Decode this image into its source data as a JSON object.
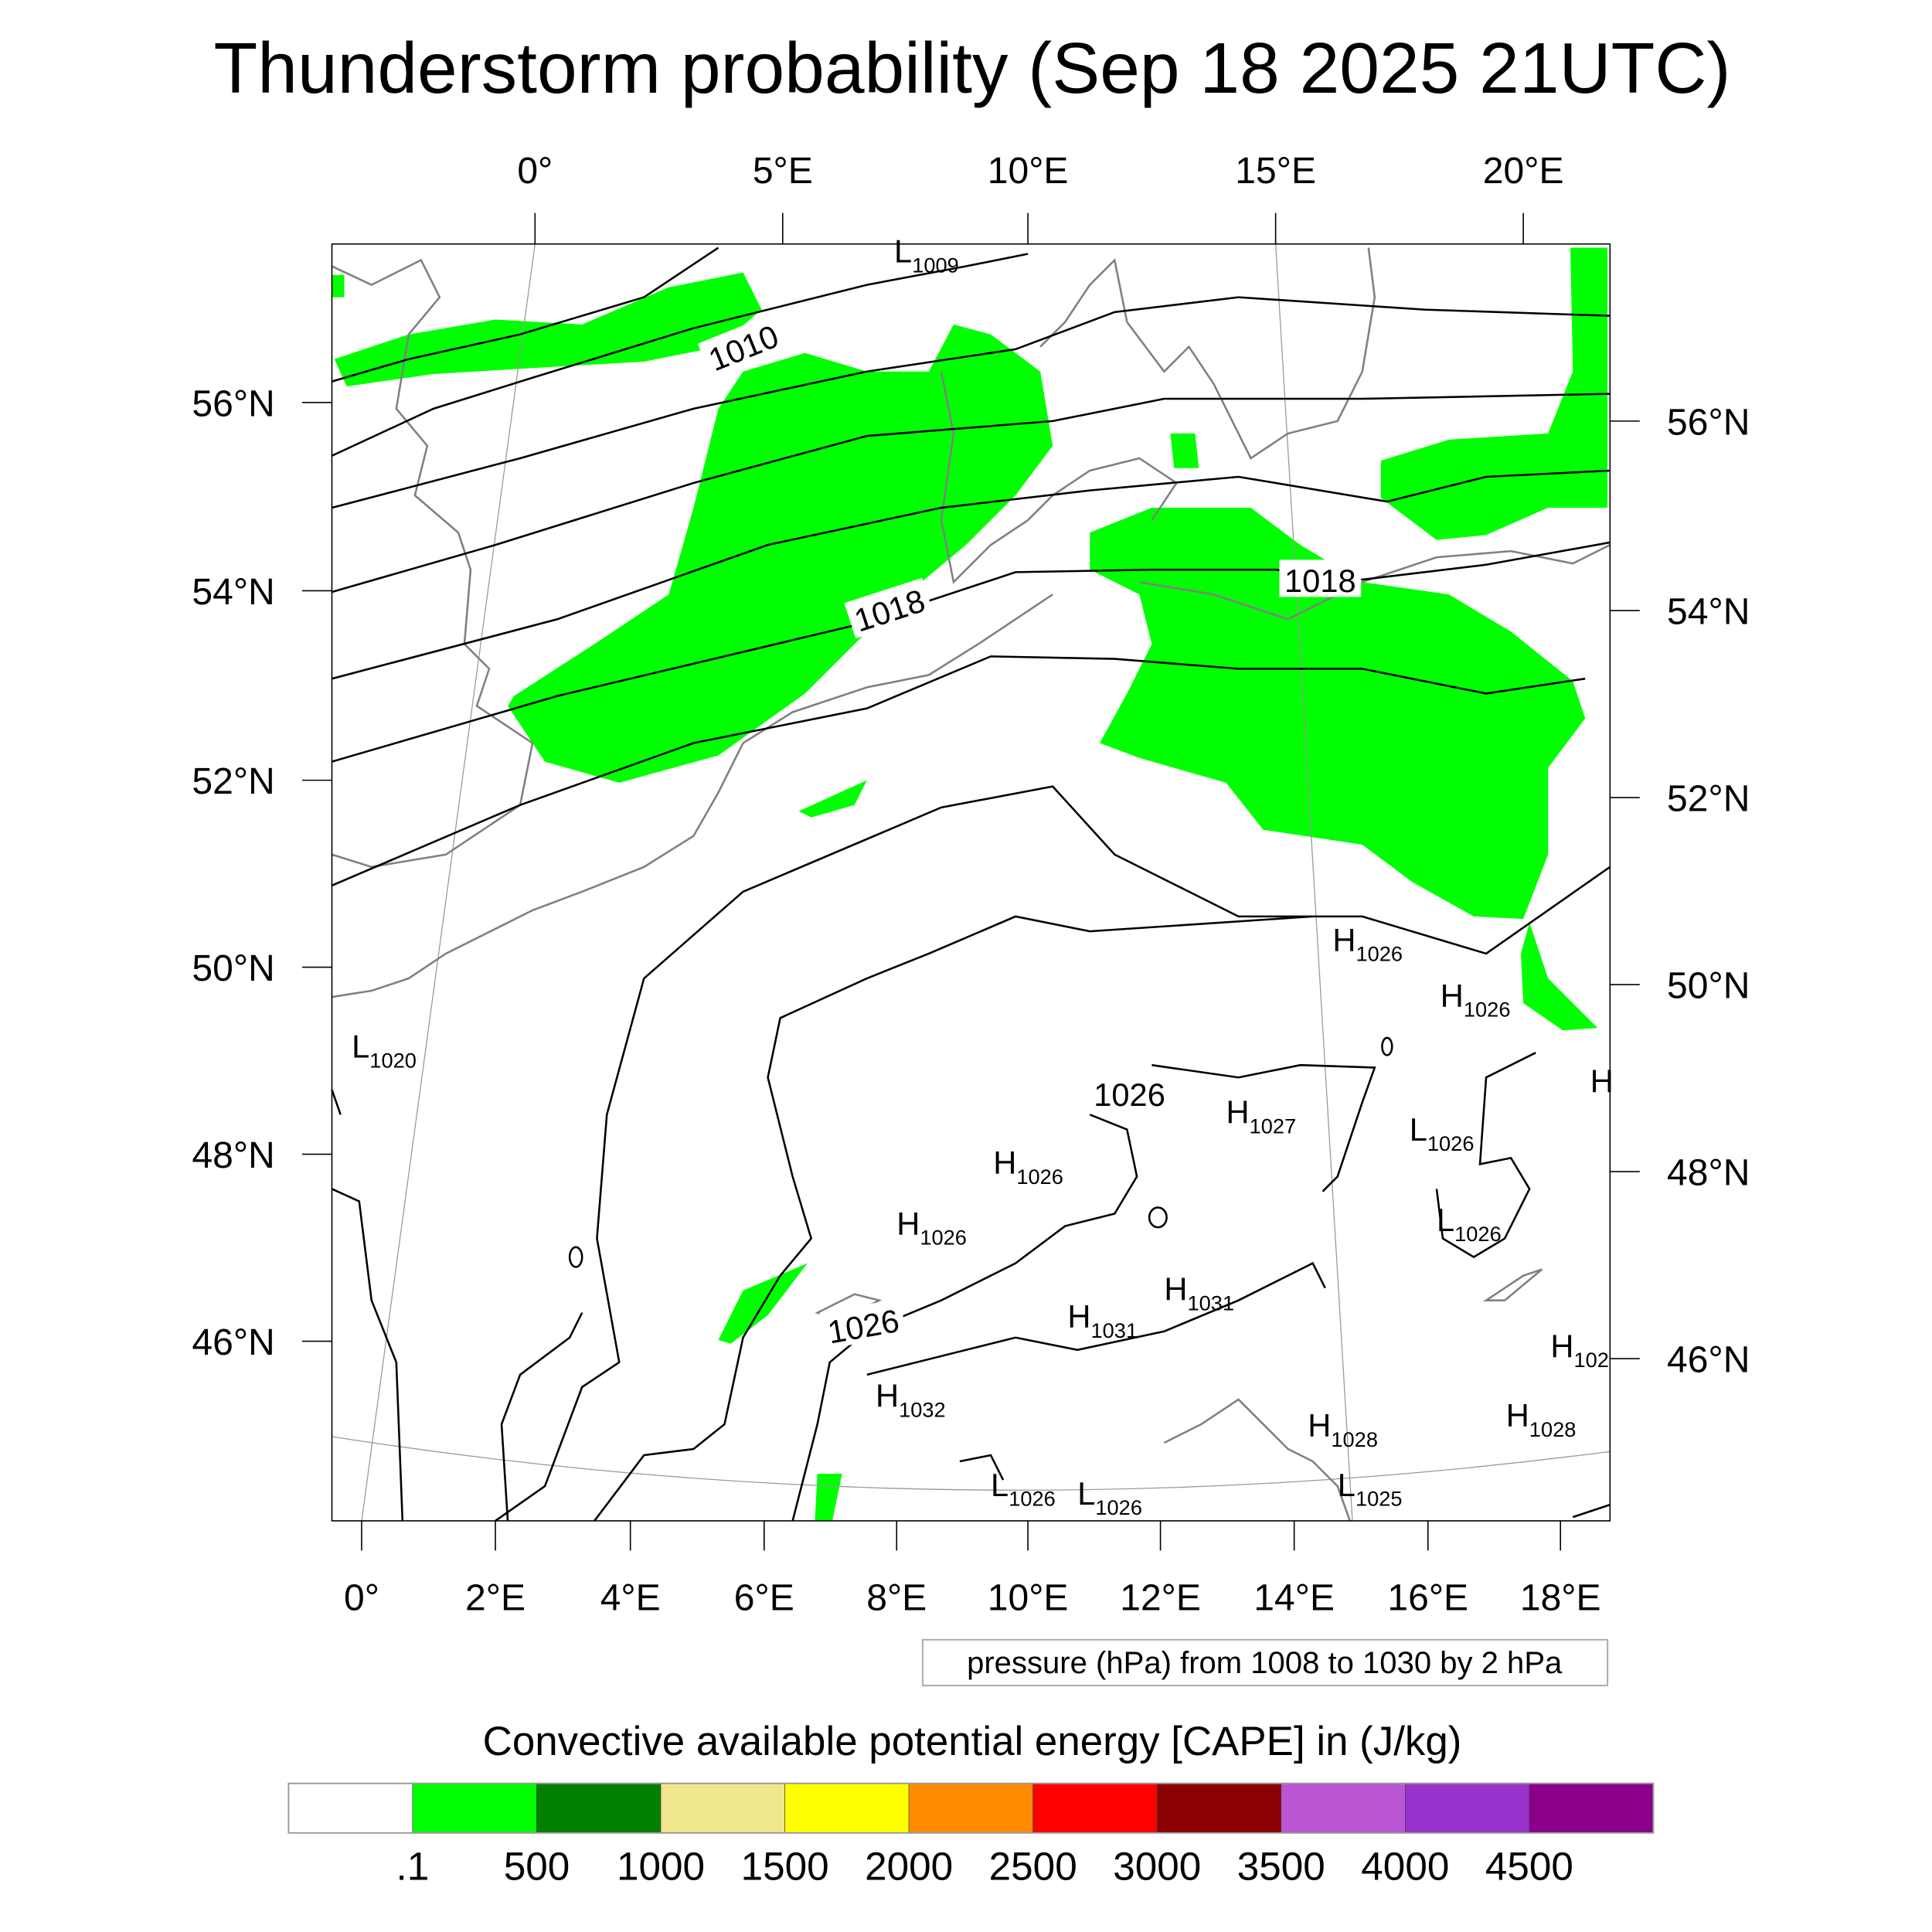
{
  "chart_data": {
    "type": "heatmap",
    "title": "Thunderstorm probability (Sep 18 2025 21UTC)",
    "top_lon_ticks": [
      "0°",
      "5°E",
      "10°E",
      "15°E",
      "20°E"
    ],
    "left_lat_ticks": [
      "56°N",
      "54°N",
      "52°N",
      "50°N",
      "48°N",
      "46°N"
    ],
    "right_lat_ticks": [
      "56°N",
      "54°N",
      "52°N",
      "50°N",
      "48°N",
      "46°N"
    ],
    "bottom_lon_ticks": [
      "0°",
      "2°E",
      "4°E",
      "6°E",
      "8°E",
      "10°E",
      "12°E",
      "14°E",
      "16°E",
      "18°E"
    ],
    "contour_legend": "pressure (hPa) from 1008 to 1030 by 2 hPa",
    "contour_range": {
      "min": 1008,
      "max": 1030,
      "step": 2
    },
    "contour_line_labels": [
      "1010",
      "1018",
      "1018",
      "1026",
      "1026"
    ],
    "pressure_centers": [
      {
        "type": "L",
        "value": "1009"
      },
      {
        "type": "L",
        "value": "1020"
      },
      {
        "type": "H",
        "value": "1026"
      },
      {
        "type": "H",
        "value": "1026"
      },
      {
        "type": "H",
        "value": "1027"
      },
      {
        "type": "L",
        "value": "1026"
      },
      {
        "type": "H",
        "value": "1026"
      },
      {
        "type": "H",
        "value": "1026"
      },
      {
        "type": "L",
        "value": "1026"
      },
      {
        "type": "H",
        "value": "1031"
      },
      {
        "type": "H",
        "value": "1031"
      },
      {
        "type": "H",
        "value": "1032"
      },
      {
        "type": "H",
        "value": "1028"
      },
      {
        "type": "H",
        "value": "1028"
      },
      {
        "type": "L",
        "value": "1026"
      },
      {
        "type": "L",
        "value": "1026"
      },
      {
        "type": "L",
        "value": "1025"
      },
      {
        "type": "H",
        "value": "102"
      },
      {
        "type": "H",
        "value": ""
      }
    ],
    "colorbar": {
      "title": "Convective available potential energy [CAPE] in (J/kg)",
      "labels": [
        ".1",
        "500",
        "1000",
        "1500",
        "2000",
        "2500",
        "3000",
        "3500",
        "4000",
        "4500"
      ],
      "colors": [
        "#ffffff",
        "#00ff00",
        "#008000",
        "#f0e68c",
        "#ffff00",
        "#ff8c00",
        "#ff0000",
        "#8b0000",
        "#ba55d3",
        "#9932cc",
        "#8b008b"
      ]
    },
    "fill_color": "#00ff00"
  }
}
